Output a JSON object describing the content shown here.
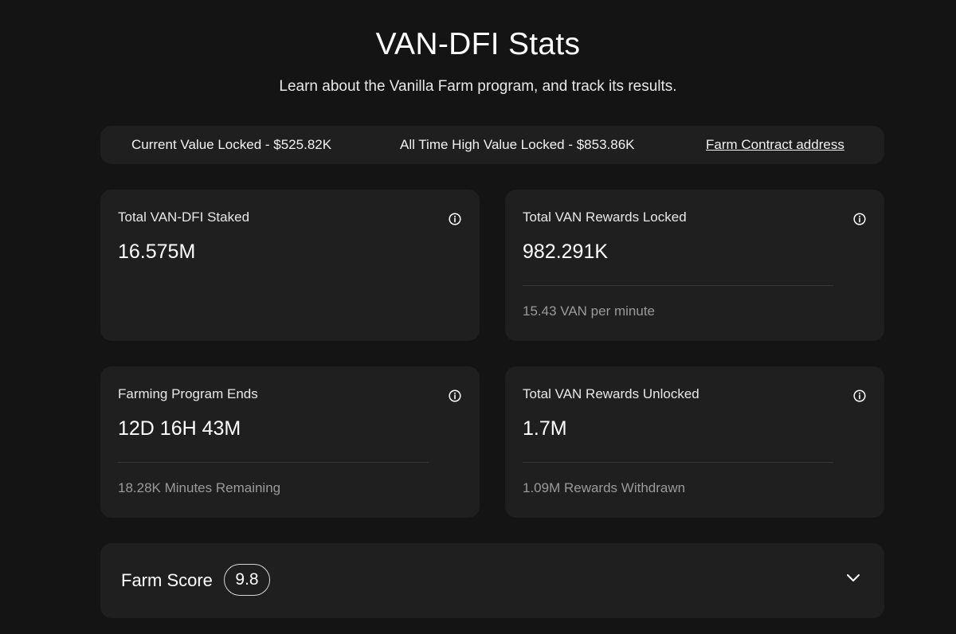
{
  "header": {
    "title": "VAN-DFI Stats",
    "subtitle": "Learn about the Vanilla Farm program, and track its results."
  },
  "summary": {
    "current_value_locked": "Current Value Locked - $525.82K",
    "all_time_high": "All Time High Value Locked - $853.86K",
    "contract_link": "Farm Contract address"
  },
  "cards": [
    {
      "label": "Total VAN-DFI Staked",
      "value": "16.575M",
      "sub": ""
    },
    {
      "label": "Total VAN Rewards Locked",
      "value": "982.291K",
      "sub": "15.43 VAN per minute"
    },
    {
      "label": "Farming Program Ends",
      "value": "12D 16H 43M",
      "sub": "18.28K Minutes Remaining"
    },
    {
      "label": "Total VAN Rewards Unlocked",
      "value": "1.7M",
      "sub": "1.09M Rewards Withdrawn"
    }
  ],
  "farm_score": {
    "label": "Farm Score",
    "value": "9.8"
  },
  "icons": {
    "info": "info-icon",
    "expand": "chevron-down-icon"
  },
  "colors": {
    "background": "#141414",
    "card": "#1f1f1f",
    "text": "#ffffff",
    "muted": "#9a9a9a"
  }
}
